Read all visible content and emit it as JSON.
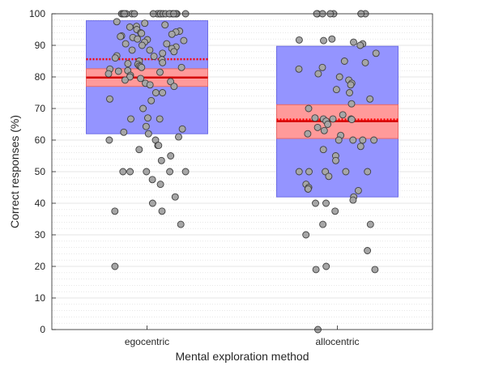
{
  "chart_data": {
    "type": "scatter",
    "subtype": "notBoxPlot",
    "title": "",
    "xlabel": "Mental exploration method",
    "ylabel": "Correct responses (%)",
    "categories": [
      "egocentric",
      "allocentric"
    ],
    "ylim": [
      0,
      100
    ],
    "yticks": [
      0,
      10,
      20,
      30,
      40,
      50,
      60,
      70,
      80,
      90,
      100
    ],
    "grid": true,
    "minor_grid": true,
    "colors": {
      "sd_box": "#9494ff",
      "sd_edge": "#6f6fe6",
      "sem_box": "#ff9a9a",
      "sem_edge": "#e86a6a",
      "mean_line": "#d40000",
      "median_line": "#ff0000",
      "point_fill": "#a6a6a6",
      "point_edge": "#404040"
    },
    "groups": [
      {
        "name": "egocentric",
        "mean": 79.8,
        "median": 85.6,
        "sem_range": [
          77.0,
          82.6
        ],
        "sd_range": [
          62.0,
          97.8
        ],
        "points": [
          100,
          100,
          100,
          100,
          100,
          100,
          100,
          100,
          100,
          100,
          100,
          100,
          100,
          100,
          100,
          100,
          100,
          100,
          100,
          100,
          97.5,
          97,
          96.5,
          96,
          95.8,
          95,
          94.5,
          94.2,
          94,
          93.8,
          93.5,
          93,
          92.8,
          92.5,
          92,
          91.8,
          91.5,
          91,
          90.5,
          90.5,
          90,
          89.5,
          89,
          88.5,
          88.5,
          88,
          87.5,
          86.7,
          86.5,
          86,
          85.5,
          85,
          84.5,
          84.2,
          84,
          83.5,
          83.3,
          83,
          83,
          82.5,
          82,
          81.8,
          81.5,
          81,
          80.5,
          80,
          79.5,
          79,
          78.5,
          78,
          77.5,
          77,
          75,
          75,
          73,
          72.5,
          70,
          67,
          66.7,
          66.7,
          64.3,
          63.5,
          62.5,
          62,
          61,
          60,
          60,
          58.3,
          58.3,
          57,
          55,
          53.5,
          50,
          50,
          50,
          50,
          50,
          47.5,
          46,
          42,
          40,
          37.5,
          37.5,
          33.3,
          20
        ]
      },
      {
        "name": "allocentric",
        "mean": 66.0,
        "median": 66.5,
        "sem_range": [
          60.5,
          71.2
        ],
        "sd_range": [
          42.0,
          89.7
        ],
        "points": [
          100,
          100,
          100,
          100,
          100,
          100,
          100,
          100,
          92,
          91.7,
          91.5,
          91,
          90.5,
          90,
          87.5,
          85,
          84.5,
          83,
          82.5,
          81,
          80,
          79,
          78,
          77.5,
          76,
          75,
          73,
          71.5,
          70,
          68,
          67,
          66.7,
          66.7,
          66.7,
          66.5,
          66,
          65,
          64,
          63,
          62,
          61.5,
          60,
          60,
          60,
          60,
          58,
          57,
          55,
          53.5,
          50,
          50,
          50,
          50,
          50,
          48.5,
          46,
          45,
          44.5,
          44.5,
          44,
          42,
          41,
          40,
          40,
          37.5,
          33.3,
          33.3,
          30,
          25,
          20,
          19,
          19,
          0
        ]
      }
    ]
  }
}
